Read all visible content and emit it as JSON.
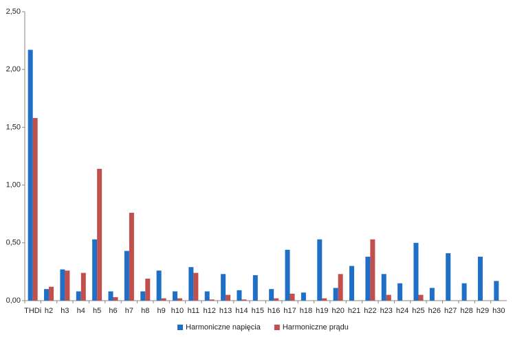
{
  "chart_data": {
    "type": "bar",
    "categories": [
      "THDi",
      "h2",
      "h3",
      "h4",
      "h5",
      "h6",
      "h7",
      "h8",
      "h9",
      "h10",
      "h11",
      "h12",
      "h13",
      "h14",
      "h15",
      "h16",
      "h17",
      "h18",
      "h19",
      "h20",
      "h21",
      "h22",
      "h23",
      "h24",
      "h25",
      "h26",
      "h27",
      "h28",
      "h29",
      "h30"
    ],
    "series": [
      {
        "name": "Harmoniczne napięcia",
        "color": "#1f6fc6",
        "values": [
          2.17,
          0.1,
          0.27,
          0.08,
          0.53,
          0.08,
          0.43,
          0.08,
          0.26,
          0.08,
          0.29,
          0.08,
          0.23,
          0.09,
          0.22,
          0.1,
          0.44,
          0.07,
          0.53,
          0.11,
          0.3,
          0.38,
          0.23,
          0.15,
          0.5,
          0.11,
          0.41,
          0.15,
          0.38,
          0.17
        ]
      },
      {
        "name": "Harmoniczne prądu",
        "color": "#c0504d",
        "values": [
          1.58,
          0.12,
          0.26,
          0.24,
          1.14,
          0.03,
          0.76,
          0.19,
          0.02,
          0.02,
          0.24,
          0.01,
          0.05,
          0.01,
          0.0,
          0.02,
          0.06,
          0.0,
          0.02,
          0.23,
          0.0,
          0.53,
          0.05,
          0.0,
          0.05,
          0.0,
          0.0,
          0.0,
          0.0,
          0.0
        ]
      }
    ],
    "ylim": [
      0,
      2.5
    ],
    "yticks": [
      {
        "value": 0,
        "label": "0,00"
      },
      {
        "value": 0.5,
        "label": "0,50"
      },
      {
        "value": 1,
        "label": "1,00"
      },
      {
        "value": 1.5,
        "label": "1,50"
      },
      {
        "value": 2,
        "label": "2,00"
      },
      {
        "value": 2.5,
        "label": "2,50"
      }
    ],
    "grid": false,
    "legend": "bottom"
  }
}
